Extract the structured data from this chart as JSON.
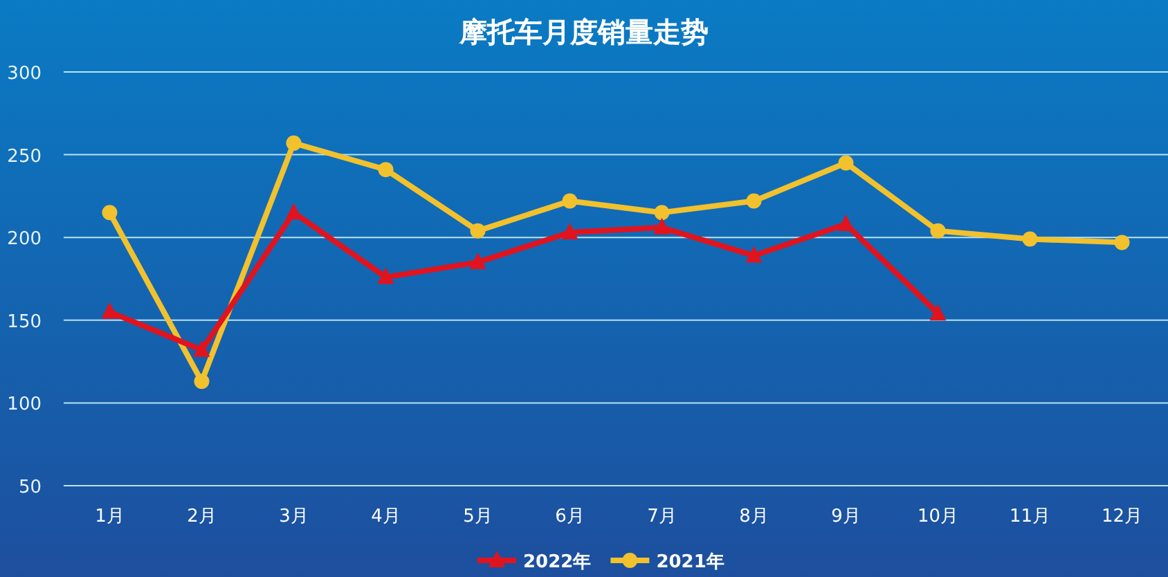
{
  "chart_data": {
    "type": "line",
    "title": "摩托车月度销量走势",
    "categories": [
      "1月",
      "2月",
      "3月",
      "4月",
      "5月",
      "6月",
      "7月",
      "8月",
      "9月",
      "10月",
      "11月",
      "12月"
    ],
    "series": [
      {
        "name": "2022年",
        "color": "#e0141e",
        "marker": "triangle",
        "values": [
          155,
          132,
          215,
          176,
          185,
          203,
          206,
          189,
          208,
          154,
          null,
          null
        ]
      },
      {
        "name": "2021年",
        "color": "#f2c12e",
        "marker": "circle",
        "values": [
          215,
          113,
          257,
          241,
          204,
          222,
          215,
          222,
          245,
          204,
          199,
          197
        ]
      }
    ],
    "ylim": [
      50,
      300
    ],
    "yticks": [
      50,
      100,
      150,
      200,
      250,
      300
    ],
    "grid": "y",
    "legend": "bottom"
  }
}
